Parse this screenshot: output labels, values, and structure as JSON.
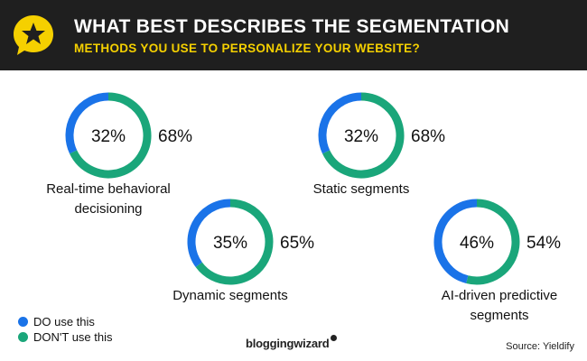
{
  "header": {
    "title": "WHAT BEST DESCRIBES THE SEGMENTATION",
    "subtitle": "METHODS YOU USE TO PERSONALIZE YOUR WEBSITE?",
    "logo_icon": "star-speech-bubble-icon"
  },
  "colors": {
    "header_bg": "#1f1f1f",
    "title": "#ffffff",
    "subtitle": "#f5d000",
    "do_use": "#1a73e8",
    "dont_use": "#1aa67a"
  },
  "chart_data": {
    "type": "pie",
    "style": "donut",
    "series_names": [
      "DO use this",
      "DON'T use this"
    ],
    "charts": [
      {
        "label_lines": [
          "Real-time behavioral",
          "decisioning"
        ],
        "do_use": 32,
        "dont_use": 68
      },
      {
        "label_lines": [
          "Static segments"
        ],
        "do_use": 32,
        "dont_use": 68
      },
      {
        "label_lines": [
          "Dynamic segments"
        ],
        "do_use": 35,
        "dont_use": 65
      },
      {
        "label_lines": [
          "AI-driven predictive",
          "segments"
        ],
        "do_use": 46,
        "dont_use": 54
      }
    ]
  },
  "legend": {
    "items": [
      {
        "label": "DO use this",
        "color": "#1a73e8"
      },
      {
        "label": "DON'T use this",
        "color": "#1aa67a"
      }
    ]
  },
  "footer": {
    "brand": "bloggingwizard",
    "source": "Source: Yieldify"
  }
}
